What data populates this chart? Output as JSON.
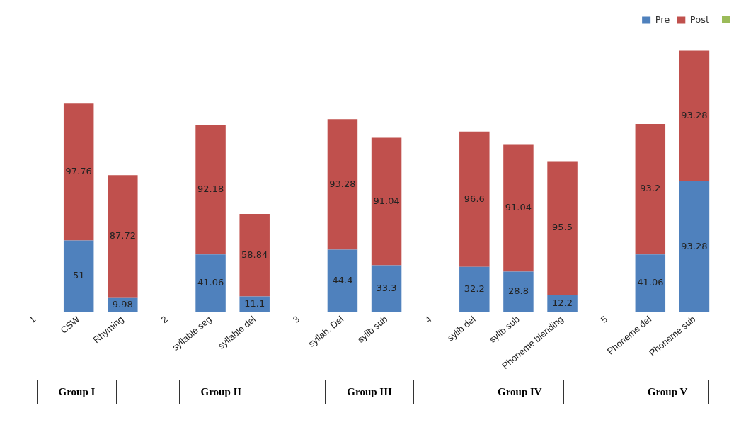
{
  "chart_data": {
    "type": "bar",
    "stacked": true,
    "data_labels": true,
    "legend": "top right",
    "grid": false,
    "tick_labels": "x",
    "categories": [
      "1",
      "CSW",
      "Rhyming",
      "2",
      "syllable seg",
      "syllable del",
      "3",
      "syllab. Del",
      "syllb sub",
      "4",
      "sylib del",
      "syllb sub",
      "Phoneme blending",
      "5",
      "Phoneme del",
      "Phoneme sub"
    ],
    "series": [
      {
        "name": "Pre",
        "color": "#4f81bd",
        "values": [
          null,
          51,
          9.98,
          null,
          41.06,
          11.1,
          null,
          44.4,
          33.3,
          null,
          32.2,
          28.8,
          12.2,
          null,
          41.06,
          93.28
        ]
      },
      {
        "name": "Post",
        "color": "#c0504d",
        "values": [
          null,
          97.76,
          87.72,
          null,
          92.18,
          58.84,
          null,
          93.28,
          91.04,
          null,
          96.6,
          91.04,
          95.5,
          null,
          93.2,
          93.28
        ]
      }
    ],
    "annotations": [
      "Group I",
      "Group II",
      "Group III",
      "Group IV",
      "Group V"
    ]
  }
}
